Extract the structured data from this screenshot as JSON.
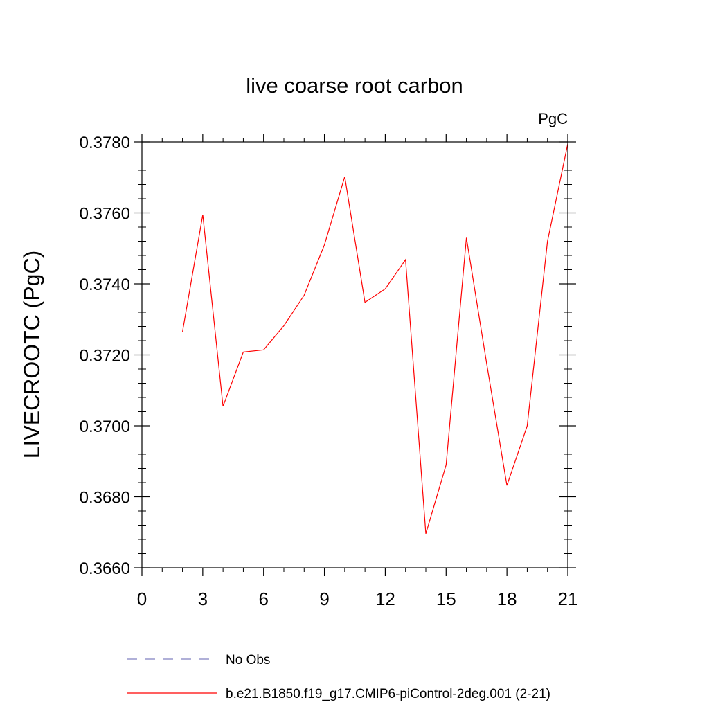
{
  "chart_data": {
    "type": "line",
    "title": "live coarse root carbon",
    "units_label": "PgC",
    "xlabel": "",
    "ylabel": "LIVECROOTC  (PgC)",
    "xlim": [
      0,
      21
    ],
    "ylim": [
      0.366,
      0.378
    ],
    "x_ticks": [
      0,
      3,
      6,
      9,
      12,
      15,
      18,
      21
    ],
    "y_ticks": [
      "0.3660",
      "0.3680",
      "0.3700",
      "0.3720",
      "0.3740",
      "0.3760",
      "0.3780"
    ],
    "grid": false,
    "legend_position": "bottom",
    "series": [
      {
        "name": "No Obs",
        "color": "#8080c0",
        "dash": "dashed",
        "x": [],
        "y": []
      },
      {
        "name": "b.e21.B1850.f19_g17.CMIP6-piControl-2deg.001 (2-21)",
        "color": "#ff0000",
        "dash": "solid",
        "x": [
          2,
          3,
          4,
          5,
          6,
          7,
          8,
          9,
          10,
          11,
          12,
          13,
          14,
          15,
          16,
          17,
          18,
          19,
          20,
          21
        ],
        "y": [
          0.37265,
          0.37595,
          0.37055,
          0.37208,
          0.37214,
          0.37282,
          0.37368,
          0.3751,
          0.37702,
          0.37348,
          0.37386,
          0.37468,
          0.36696,
          0.3689,
          0.3753,
          0.37175,
          0.36832,
          0.37,
          0.3752,
          0.37795
        ]
      }
    ]
  }
}
